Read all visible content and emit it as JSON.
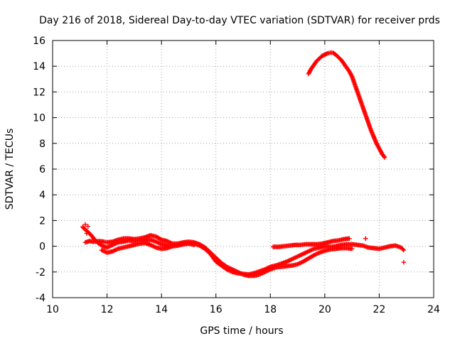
{
  "chart_data": {
    "type": "scatter",
    "title": "Day 216 of 2018, Sidereal Day-to-day VTEC variation (SDTVAR) for receiver prds",
    "xlabel": "GPS time / hours",
    "ylabel": "SDTVAR / TECUs",
    "xlim": [
      10,
      24
    ],
    "ylim": [
      -4,
      16
    ],
    "xticks": [
      10,
      12,
      14,
      16,
      18,
      20,
      22,
      24
    ],
    "yticks": [
      -4,
      -2,
      0,
      2,
      4,
      6,
      8,
      10,
      12,
      14,
      16
    ],
    "xtick_labels": [
      "10",
      "12",
      "14",
      "16",
      "18",
      "20",
      "22",
      "24"
    ],
    "ytick_labels": [
      "-4",
      "-2",
      "0",
      "2",
      "4",
      "6",
      "8",
      "10",
      "12",
      "14",
      "16"
    ],
    "grid": true,
    "legend": "none",
    "marker": "plus",
    "color": "#ff0000",
    "series": [
      {
        "name": "track-a",
        "x": [
          11.2,
          11.35,
          11.5,
          11.7,
          11.9,
          12.0,
          12.2,
          12.4,
          12.6,
          12.8,
          13.0,
          13.2,
          13.4,
          13.6,
          13.8,
          14.0,
          14.2,
          14.4,
          14.6,
          14.8,
          15.0,
          15.2,
          15.4,
          15.6,
          15.8,
          16.0,
          16.2,
          16.4,
          16.6,
          16.8,
          17.0,
          17.2,
          17.4,
          17.6,
          17.8,
          18.0,
          18.2,
          18.4,
          18.6,
          18.8,
          19.0,
          19.2,
          19.4,
          19.6,
          19.8,
          20.0,
          20.2,
          20.4,
          20.6,
          20.8,
          21.0
        ],
        "y": [
          0.3,
          0.4,
          0.35,
          0.4,
          0.35,
          0.3,
          0.35,
          0.5,
          0.6,
          0.6,
          0.55,
          0.6,
          0.7,
          0.85,
          0.75,
          0.5,
          0.4,
          0.2,
          0.2,
          0.3,
          0.35,
          0.3,
          0.15,
          -0.1,
          -0.5,
          -0.9,
          -1.3,
          -1.6,
          -1.8,
          -2.0,
          -2.2,
          -2.3,
          -2.3,
          -2.2,
          -2.0,
          -1.8,
          -1.65,
          -1.6,
          -1.55,
          -1.5,
          -1.4,
          -1.2,
          -0.95,
          -0.7,
          -0.5,
          -0.35,
          -0.25,
          -0.2,
          -0.15,
          -0.15,
          -0.2
        ]
      },
      {
        "name": "track-b",
        "x": [
          11.8,
          12.0,
          12.2,
          12.4,
          12.6,
          12.8,
          13.0,
          13.2,
          13.4,
          13.6,
          13.8,
          14.0,
          14.2,
          14.4,
          14.6,
          14.8,
          15.0,
          15.2,
          15.4,
          15.6,
          15.8,
          16.0,
          16.2,
          16.4,
          16.6,
          16.8,
          17.0,
          17.2,
          17.4,
          17.6,
          17.8,
          18.0,
          18.2,
          18.4,
          18.6,
          18.8,
          19.0,
          19.2,
          19.4,
          19.6,
          19.8,
          20.0,
          20.2,
          20.4,
          20.6,
          20.8,
          21.0,
          21.2,
          21.4,
          21.6,
          21.8,
          22.0,
          22.2,
          22.4,
          22.6,
          22.8,
          22.9
        ],
        "y": [
          -0.3,
          -0.5,
          -0.4,
          -0.2,
          -0.1,
          0.0,
          0.1,
          0.2,
          0.25,
          0.1,
          -0.1,
          -0.2,
          -0.15,
          0.0,
          0.1,
          0.2,
          0.25,
          0.2,
          0.05,
          -0.2,
          -0.6,
          -1.2,
          -1.5,
          -1.8,
          -2.0,
          -2.1,
          -2.15,
          -2.2,
          -2.1,
          -1.95,
          -1.8,
          -1.6,
          -1.5,
          -1.35,
          -1.2,
          -1.0,
          -0.8,
          -0.6,
          -0.4,
          -0.2,
          -0.1,
          0.0,
          -0.05,
          0.0,
          0.1,
          0.15,
          0.15,
          0.1,
          0.05,
          -0.1,
          -0.15,
          -0.2,
          -0.1,
          0.0,
          0.05,
          -0.1,
          -0.3
        ]
      },
      {
        "name": "track-c",
        "x": [
          11.1,
          11.25,
          11.4,
          11.55,
          11.7,
          11.85,
          12.0,
          12.2,
          12.4,
          12.6,
          12.8,
          13.0,
          13.2,
          13.4,
          13.6,
          13.8,
          14.0,
          14.2,
          14.4,
          14.6,
          14.8,
          15.0,
          15.2
        ],
        "y": [
          1.5,
          1.2,
          0.9,
          0.5,
          0.2,
          0.0,
          -0.1,
          0.1,
          0.3,
          0.35,
          0.45,
          0.4,
          0.45,
          0.5,
          0.5,
          0.35,
          0.15,
          0.05,
          0.0,
          0.05,
          0.15,
          0.2,
          0.1
        ]
      },
      {
        "name": "track-d",
        "x": [
          18.1,
          18.3,
          18.5,
          18.7,
          18.9,
          19.1,
          19.3,
          19.5,
          19.7,
          19.9,
          20.1,
          20.3,
          20.5,
          20.7,
          20.9
        ],
        "y": [
          -0.05,
          -0.05,
          0.0,
          0.05,
          0.1,
          0.1,
          0.15,
          0.15,
          0.15,
          0.2,
          0.3,
          0.4,
          0.45,
          0.55,
          0.6
        ]
      },
      {
        "name": "track-e",
        "x": [
          19.4,
          19.5,
          19.6,
          19.7,
          19.8,
          19.9,
          20.0,
          20.1,
          20.2,
          20.3,
          20.4,
          20.5,
          20.6,
          20.7,
          20.8,
          20.9,
          21.0,
          21.1,
          21.2,
          21.3,
          21.4,
          21.5,
          21.6,
          21.7,
          21.8,
          21.9,
          22.0,
          22.1,
          22.2
        ],
        "y": [
          13.4,
          13.8,
          14.1,
          14.4,
          14.6,
          14.8,
          14.9,
          15.0,
          15.05,
          15.05,
          14.9,
          14.7,
          14.5,
          14.2,
          13.9,
          13.6,
          13.2,
          12.6,
          12.0,
          11.4,
          10.8,
          10.2,
          9.6,
          9.0,
          8.5,
          8.0,
          7.6,
          7.2,
          6.9
        ]
      },
      {
        "name": "outliers",
        "x": [
          11.2,
          11.3,
          11.25,
          21.5,
          22.9
        ],
        "y": [
          1.7,
          1.55,
          1.0,
          0.6,
          -1.25
        ]
      }
    ]
  }
}
